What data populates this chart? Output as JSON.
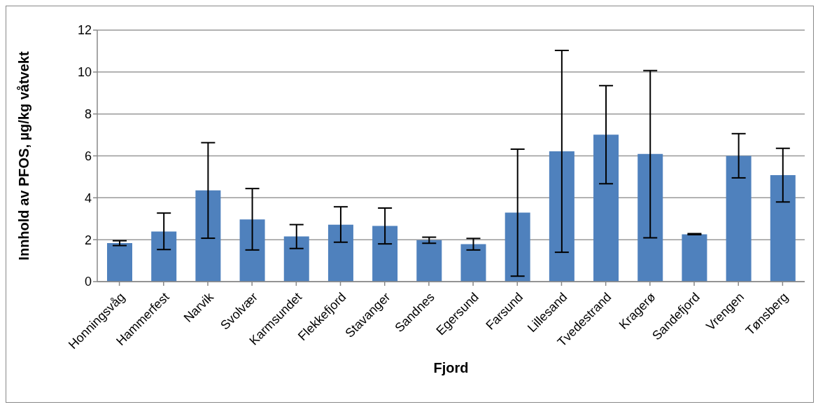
{
  "chart_data": {
    "type": "bar",
    "xlabel": "Fjord",
    "ylabel": "Innhold av PFOS, µg/kg våtvekt",
    "categories": [
      "Honningsvåg",
      "Hammerfest",
      "Narvik",
      "Svolvær",
      "Karmsundet",
      "Flekkefjord",
      "Stavanger",
      "Sandnes",
      "Egersund",
      "Farsund",
      "Lillesand",
      "Tvedestrand",
      "Kragerø",
      "Sandefjord",
      "Vrengen",
      "Tønsberg"
    ],
    "values": [
      1.84,
      2.39,
      4.35,
      2.97,
      2.16,
      2.72,
      2.66,
      1.98,
      1.79,
      3.29,
      6.22,
      7.01,
      6.09,
      2.26,
      6.0,
      5.08
    ],
    "errors": [
      [
        1.72,
        1.95
      ],
      [
        1.53,
        3.27
      ],
      [
        2.07,
        6.63
      ],
      [
        1.51,
        4.44
      ],
      [
        1.58,
        2.72
      ],
      [
        1.88,
        3.57
      ],
      [
        1.8,
        3.51
      ],
      [
        1.83,
        2.12
      ],
      [
        1.51,
        2.06
      ],
      [
        0.26,
        6.32
      ],
      [
        1.4,
        11.03
      ],
      [
        4.67,
        9.35
      ],
      [
        2.09,
        10.07
      ],
      [
        2.24,
        2.29
      ],
      [
        4.95,
        7.06
      ],
      [
        3.8,
        6.36
      ]
    ],
    "color": "#4f81bd",
    "ylim": [
      0,
      12
    ],
    "yticks": [
      0,
      2,
      4,
      6,
      8,
      10,
      12
    ],
    "grid": "y",
    "legend": false
  }
}
